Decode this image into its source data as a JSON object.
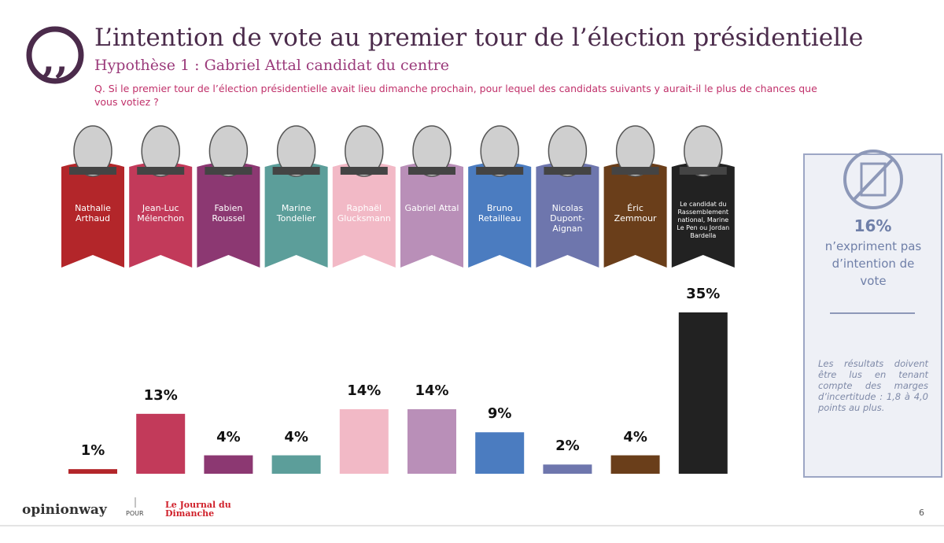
{
  "header": {
    "title": "L’intention de vote au premier tour de l’élection présidentielle",
    "subtitle": "Hypothèse 1 : Gabriel Attal candidat du centre",
    "question": "Q. Si le premier tour de l’élection présidentielle avait lieu dimanche prochain, pour lequel des candidats suivants y aurait-il le plus de chances que vous votiez ?"
  },
  "chart_data": {
    "type": "bar",
    "categories": [
      "Nathalie Arthaud",
      "Jean-Luc Mélenchon",
      "Fabien Roussel",
      "Marine Tondelier",
      "Raphaël Glucksmann",
      "Gabriel Attal",
      "Bruno Retailleau",
      "Nicolas Dupont-Aignan",
      "Éric Zemmour",
      "Le candidat du Rassemblement national, Marine Le Pen ou Jordan Bardella"
    ],
    "values": [
      1,
      13,
      4,
      4,
      14,
      14,
      9,
      2,
      4,
      35
    ],
    "value_labels": [
      "1%",
      "13%",
      "4%",
      "4%",
      "14%",
      "14%",
      "9%",
      "2%",
      "4%",
      "35%"
    ],
    "colors": [
      "#b3262a",
      "#c23a5a",
      "#8c3872",
      "#5c9e9a",
      "#f2b9c6",
      "#b98fb8",
      "#4b7cc0",
      "#6e76ad",
      "#6a3e1a",
      "#222222"
    ]
  },
  "sidebar": {
    "value": "16%",
    "text": "n’expriment pas d’intention de vote",
    "note": "Les résultats doivent être lus en tenant compte des marges d’incertitude : 1,8 à 4,0 points au plus."
  },
  "footer": {
    "brand": "opinionway",
    "pour": "POUR",
    "partner": "Le Journal du Dimanche",
    "page": "6"
  }
}
